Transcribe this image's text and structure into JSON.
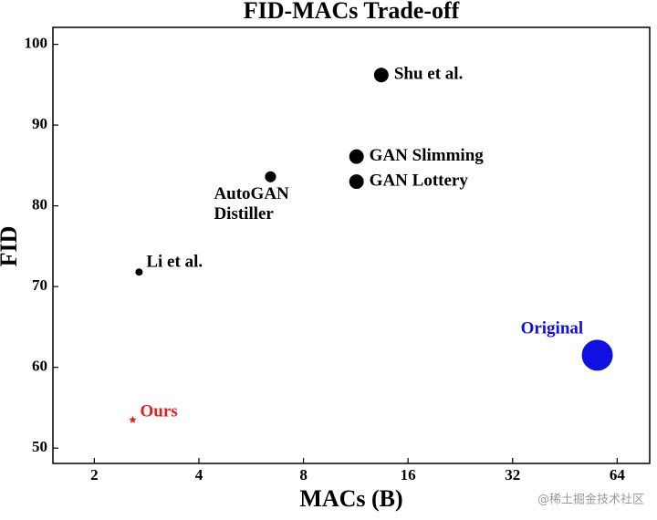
{
  "chart_data": {
    "type": "scatter",
    "title": "FID-MACs Trade-off",
    "xlabel": "MACs (B)",
    "ylabel": "FID",
    "xscale": "log2",
    "xlim": [
      1.52,
      79.4
    ],
    "ylim": [
      48.1,
      102.1
    ],
    "xticks": [
      2,
      4,
      8,
      16,
      32,
      64
    ],
    "yticks": [
      50,
      60,
      70,
      80,
      90,
      100
    ],
    "series": [
      {
        "name": "Ours",
        "color": "#e02020",
        "marker": "star",
        "x": [
          2.58
        ],
        "values": [
          53.5
        ],
        "sizes": [
          40
        ]
      },
      {
        "name": "Li et al.",
        "color": "#000000",
        "marker": "circle",
        "x": [
          2.69
        ],
        "values": [
          71.8
        ],
        "sizes": [
          33
        ]
      },
      {
        "name": "AutoGAN\nDistiller",
        "color": "#000000",
        "marker": "circle",
        "x": [
          6.43
        ],
        "values": [
          83.6
        ],
        "sizes": [
          75
        ]
      },
      {
        "name": "GAN Slimming",
        "color": "#000000",
        "marker": "circle",
        "x": [
          11.37
        ],
        "values": [
          86.1
        ],
        "sizes": [
          130
        ]
      },
      {
        "name": "GAN Lottery",
        "color": "#000000",
        "marker": "circle",
        "x": [
          11.37
        ],
        "values": [
          83.0
        ],
        "sizes": [
          130
        ]
      },
      {
        "name": "Shu et al.",
        "color": "#000000",
        "marker": "circle",
        "x": [
          13.4
        ],
        "values": [
          96.2
        ],
        "sizes": [
          130
        ]
      },
      {
        "name": "Original",
        "color": "#1010e0",
        "marker": "circle",
        "x": [
          56.1
        ],
        "values": [
          61.5
        ],
        "sizes": [
          590
        ]
      }
    ]
  },
  "watermark": "@稀土掘金技术社区"
}
